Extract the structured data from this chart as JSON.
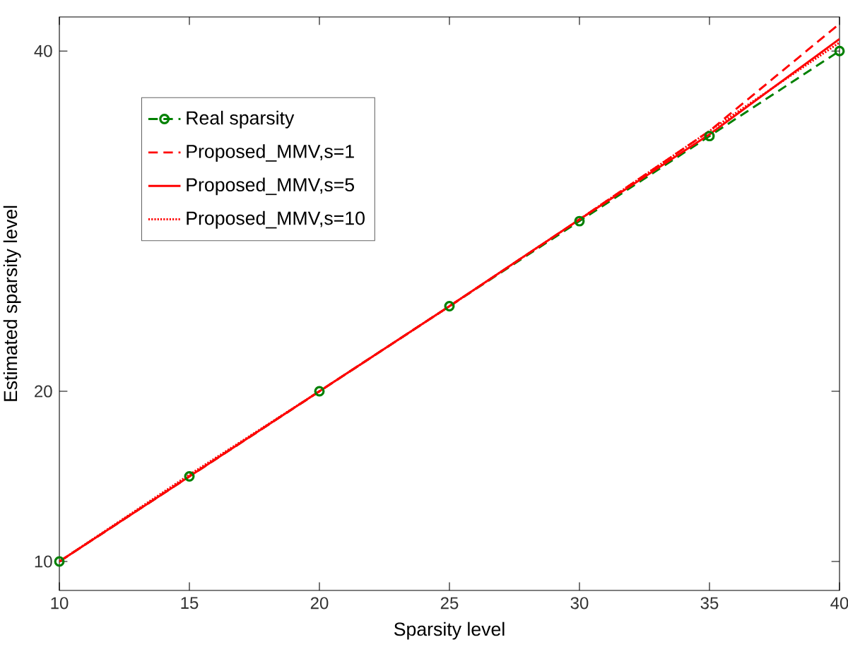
{
  "chart_data": {
    "type": "line",
    "xlabel": "Sparsity level",
    "ylabel": "Estimated sparsity level",
    "x": [
      10,
      15,
      20,
      25,
      30,
      35,
      40
    ],
    "series": [
      {
        "name": "Real sparsity",
        "color": "#008000",
        "marker": "circle",
        "line_style": "dashed",
        "values": [
          10,
          15,
          20,
          25,
          30,
          35,
          40
        ]
      },
      {
        "name": "Proposed_MMV,s=1",
        "color": "#ff0000",
        "marker": "none",
        "line_style": "dashed",
        "values": [
          10,
          15,
          20,
          25,
          30.1,
          35.3,
          41.6
        ]
      },
      {
        "name": "Proposed_MMV,s=5",
        "color": "#ff0000",
        "marker": "none",
        "line_style": "solid",
        "values": [
          10,
          15,
          20,
          25,
          30.1,
          35.1,
          40.7
        ]
      },
      {
        "name": "Proposed_MMV,s=10",
        "color": "#ff0000",
        "marker": "none",
        "line_style": "dotted",
        "values": [
          10,
          15.1,
          20,
          25,
          30.1,
          35.3,
          40.5
        ]
      }
    ],
    "xlim": [
      10,
      40
    ],
    "ylim": [
      8.3,
      42
    ],
    "xticks": [
      10,
      15,
      20,
      25,
      30,
      35,
      40
    ],
    "yticks": [
      10,
      20,
      40
    ],
    "grid": false,
    "legend": "top left"
  }
}
